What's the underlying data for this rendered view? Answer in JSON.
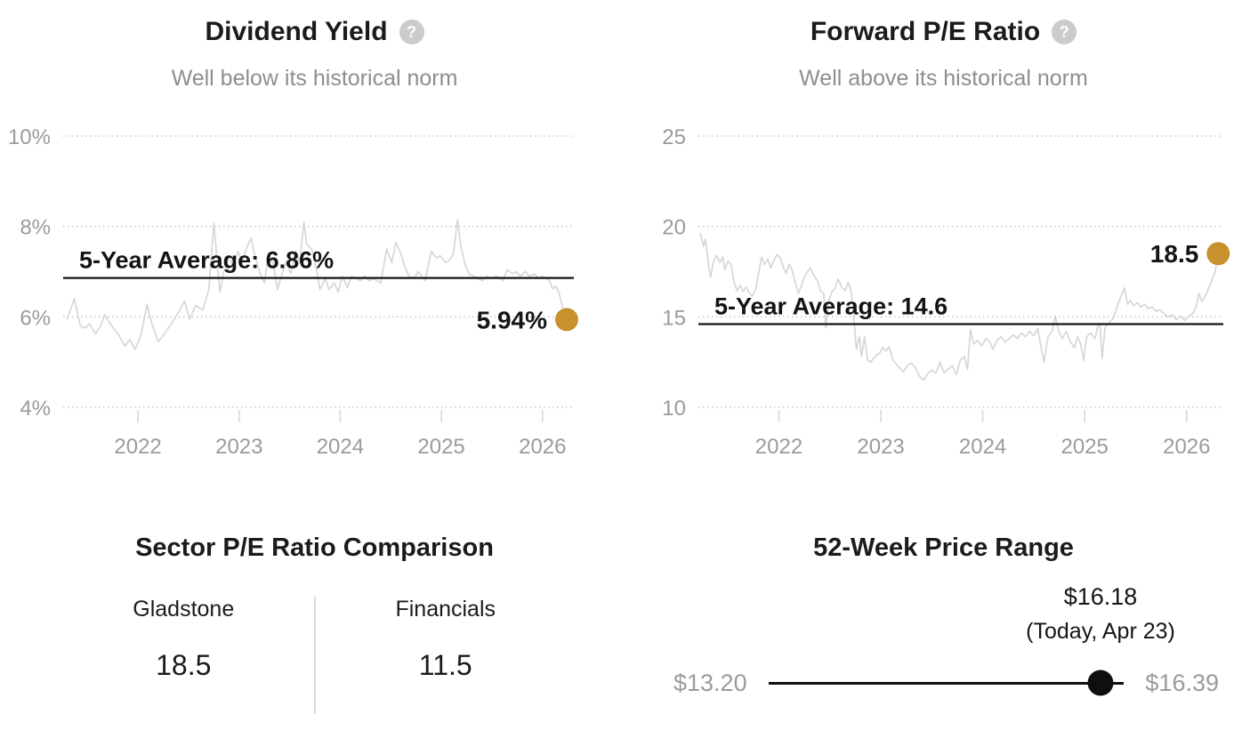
{
  "ui": {
    "help_glyph": "?"
  },
  "colors": {
    "accent_gold": "#c8912e",
    "series_gray": "#d7d7d7",
    "text_gray": "#9b9b9b",
    "subtitle_gray": "#8e8e8e",
    "black": "#141414"
  },
  "chart_data": [
    {
      "type": "line",
      "title": "Dividend Yield",
      "subtitle": "Well below its historical norm",
      "legend_position": "none",
      "grid": "dotted-horizontal",
      "y_ticks": [
        {
          "label": "10%",
          "value": 10
        },
        {
          "label": "8%",
          "value": 8
        },
        {
          "label": "6%",
          "value": 6
        },
        {
          "label": "4%",
          "value": 4
        }
      ],
      "ylim": [
        4,
        10
      ],
      "x_ticks": [
        "2022",
        "2023",
        "2024",
        "2025",
        "2026"
      ],
      "average": {
        "value": 6.86,
        "label": "5-Year Average: 6.86%"
      },
      "current": {
        "value": 5.94,
        "label": "5.94%"
      },
      "series": [
        [
          2021.3,
          5.95
        ],
        [
          2021.37,
          6.4
        ],
        [
          2021.43,
          5.8
        ],
        [
          2021.48,
          5.75
        ],
        [
          2021.52,
          5.85
        ],
        [
          2021.58,
          5.62
        ],
        [
          2021.63,
          5.8
        ],
        [
          2021.67,
          6.05
        ],
        [
          2021.74,
          5.8
        ],
        [
          2021.81,
          5.6
        ],
        [
          2021.87,
          5.35
        ],
        [
          2021.92,
          5.5
        ],
        [
          2021.97,
          5.28
        ],
        [
          2022.03,
          5.6
        ],
        [
          2022.09,
          6.28
        ],
        [
          2022.13,
          5.9
        ],
        [
          2022.2,
          5.45
        ],
        [
          2022.26,
          5.62
        ],
        [
          2022.33,
          5.85
        ],
        [
          2022.4,
          6.1
        ],
        [
          2022.46,
          6.35
        ],
        [
          2022.51,
          5.95
        ],
        [
          2022.57,
          6.25
        ],
        [
          2022.64,
          6.15
        ],
        [
          2022.7,
          6.6
        ],
        [
          2022.75,
          8.08
        ],
        [
          2022.78,
          7.3
        ],
        [
          2022.81,
          6.55
        ],
        [
          2022.85,
          7.0
        ],
        [
          2022.9,
          7.35
        ],
        [
          2022.94,
          7.1
        ],
        [
          2022.99,
          7.45
        ],
        [
          2023.03,
          7.2
        ],
        [
          2023.07,
          7.5
        ],
        [
          2023.12,
          7.75
        ],
        [
          2023.16,
          7.3
        ],
        [
          2023.21,
          6.95
        ],
        [
          2023.25,
          6.75
        ],
        [
          2023.29,
          7.4
        ],
        [
          2023.34,
          7.15
        ],
        [
          2023.38,
          6.6
        ],
        [
          2023.43,
          7.0
        ],
        [
          2023.47,
          7.25
        ],
        [
          2023.51,
          6.95
        ],
        [
          2023.56,
          7.45
        ],
        [
          2023.6,
          7.2
        ],
        [
          2023.64,
          8.1
        ],
        [
          2023.67,
          7.6
        ],
        [
          2023.72,
          7.5
        ],
        [
          2023.76,
          7.1
        ],
        [
          2023.8,
          6.6
        ],
        [
          2023.85,
          6.85
        ],
        [
          2023.89,
          6.6
        ],
        [
          2023.94,
          6.75
        ],
        [
          2023.98,
          6.55
        ],
        [
          2024.02,
          6.9
        ],
        [
          2024.07,
          6.65
        ],
        [
          2024.11,
          6.9
        ],
        [
          2024.16,
          6.85
        ],
        [
          2024.2,
          6.8
        ],
        [
          2024.24,
          6.9
        ],
        [
          2024.29,
          6.8
        ],
        [
          2024.33,
          6.85
        ],
        [
          2024.4,
          6.75
        ],
        [
          2024.46,
          7.5
        ],
        [
          2024.51,
          7.2
        ],
        [
          2024.55,
          7.65
        ],
        [
          2024.6,
          7.4
        ],
        [
          2024.64,
          7.1
        ],
        [
          2024.68,
          6.9
        ],
        [
          2024.73,
          6.85
        ],
        [
          2024.77,
          7.0
        ],
        [
          2024.84,
          6.8
        ],
        [
          2024.9,
          7.45
        ],
        [
          2024.95,
          7.3
        ],
        [
          2024.99,
          7.35
        ],
        [
          2025.04,
          7.2
        ],
        [
          2025.08,
          7.25
        ],
        [
          2025.12,
          7.4
        ],
        [
          2025.16,
          8.15
        ],
        [
          2025.19,
          7.6
        ],
        [
          2025.23,
          7.2
        ],
        [
          2025.27,
          6.95
        ],
        [
          2025.32,
          6.9
        ],
        [
          2025.36,
          6.85
        ],
        [
          2025.41,
          6.8
        ],
        [
          2025.45,
          6.9
        ],
        [
          2025.49,
          6.85
        ],
        [
          2025.54,
          6.9
        ],
        [
          2025.58,
          6.85
        ],
        [
          2025.61,
          6.8
        ],
        [
          2025.65,
          7.05
        ],
        [
          2025.7,
          6.95
        ],
        [
          2025.74,
          7.0
        ],
        [
          2025.78,
          6.9
        ],
        [
          2025.83,
          7.0
        ],
        [
          2025.87,
          6.9
        ],
        [
          2025.92,
          6.95
        ],
        [
          2025.96,
          6.85
        ],
        [
          2026.0,
          6.9
        ],
        [
          2026.04,
          6.85
        ],
        [
          2026.07,
          6.8
        ],
        [
          2026.1,
          6.62
        ],
        [
          2026.13,
          6.68
        ],
        [
          2026.16,
          6.55
        ],
        [
          2026.19,
          6.3
        ],
        [
          2026.22,
          6.05
        ],
        [
          2026.24,
          5.94
        ]
      ]
    },
    {
      "type": "line",
      "title": "Forward P/E Ratio",
      "subtitle": "Well above its historical norm",
      "legend_position": "none",
      "grid": "dotted-horizontal",
      "y_ticks": [
        {
          "label": "25",
          "value": 25
        },
        {
          "label": "20",
          "value": 20
        },
        {
          "label": "15",
          "value": 15
        },
        {
          "label": "10",
          "value": 10
        }
      ],
      "ylim": [
        10,
        25
      ],
      "x_ticks": [
        "2022",
        "2023",
        "2024",
        "2025",
        "2026"
      ],
      "average": {
        "value": 14.6,
        "label": "5-Year Average: 14.6"
      },
      "current": {
        "value": 18.5,
        "label": "18.5"
      },
      "series": [
        [
          2021.23,
          19.6
        ],
        [
          2021.26,
          18.9
        ],
        [
          2021.28,
          19.3
        ],
        [
          2021.31,
          17.8
        ],
        [
          2021.33,
          17.2
        ],
        [
          2021.36,
          18.1
        ],
        [
          2021.39,
          18.4
        ],
        [
          2021.42,
          18.0
        ],
        [
          2021.45,
          18.3
        ],
        [
          2021.47,
          17.6
        ],
        [
          2021.5,
          18.1
        ],
        [
          2021.53,
          17.9
        ],
        [
          2021.56,
          16.9
        ],
        [
          2021.59,
          16.45
        ],
        [
          2021.62,
          16.75
        ],
        [
          2021.65,
          16.4
        ],
        [
          2021.68,
          16.65
        ],
        [
          2021.71,
          16.3
        ],
        [
          2021.74,
          16.15
        ],
        [
          2021.77,
          16.5
        ],
        [
          2021.8,
          17.4
        ],
        [
          2021.83,
          18.3
        ],
        [
          2021.86,
          17.9
        ],
        [
          2021.89,
          18.2
        ],
        [
          2021.92,
          17.7
        ],
        [
          2021.95,
          18.1
        ],
        [
          2021.98,
          18.45
        ],
        [
          2022.01,
          18.3
        ],
        [
          2022.04,
          17.8
        ],
        [
          2022.07,
          17.4
        ],
        [
          2022.1,
          17.9
        ],
        [
          2022.13,
          17.6
        ],
        [
          2022.16,
          16.9
        ],
        [
          2022.19,
          16.3
        ],
        [
          2022.22,
          16.7
        ],
        [
          2022.25,
          17.2
        ],
        [
          2022.28,
          17.5
        ],
        [
          2022.31,
          17.7
        ],
        [
          2022.34,
          17.3
        ],
        [
          2022.38,
          17.0
        ],
        [
          2022.41,
          16.4
        ],
        [
          2022.44,
          16.3
        ],
        [
          2022.46,
          14.4
        ],
        [
          2022.49,
          15.9
        ],
        [
          2022.52,
          16.4
        ],
        [
          2022.55,
          16.55
        ],
        [
          2022.58,
          17.1
        ],
        [
          2022.62,
          16.6
        ],
        [
          2022.65,
          16.45
        ],
        [
          2022.68,
          16.9
        ],
        [
          2022.71,
          16.4
        ],
        [
          2022.73,
          15.3
        ],
        [
          2022.76,
          13.2
        ],
        [
          2022.79,
          13.9
        ],
        [
          2022.81,
          12.8
        ],
        [
          2022.84,
          13.9
        ],
        [
          2022.87,
          12.6
        ],
        [
          2022.9,
          12.5
        ],
        [
          2022.93,
          12.7
        ],
        [
          2022.96,
          12.9
        ],
        [
          2022.99,
          13.0
        ],
        [
          2023.02,
          13.3
        ],
        [
          2023.05,
          13.1
        ],
        [
          2023.08,
          13.35
        ],
        [
          2023.12,
          12.6
        ],
        [
          2023.15,
          12.4
        ],
        [
          2023.18,
          12.2
        ],
        [
          2023.22,
          11.95
        ],
        [
          2023.26,
          12.3
        ],
        [
          2023.3,
          12.45
        ],
        [
          2023.34,
          12.2
        ],
        [
          2023.38,
          11.7
        ],
        [
          2023.42,
          11.5
        ],
        [
          2023.46,
          11.85
        ],
        [
          2023.5,
          12.05
        ],
        [
          2023.54,
          11.9
        ],
        [
          2023.58,
          12.5
        ],
        [
          2023.62,
          11.9
        ],
        [
          2023.66,
          12.1
        ],
        [
          2023.7,
          12.3
        ],
        [
          2023.74,
          11.8
        ],
        [
          2023.78,
          12.6
        ],
        [
          2023.82,
          12.8
        ],
        [
          2023.85,
          12.1
        ],
        [
          2023.88,
          14.3
        ],
        [
          2023.91,
          13.5
        ],
        [
          2023.95,
          13.7
        ],
        [
          2023.99,
          13.4
        ],
        [
          2024.03,
          13.8
        ],
        [
          2024.07,
          13.6
        ],
        [
          2024.1,
          13.2
        ],
        [
          2024.14,
          13.7
        ],
        [
          2024.18,
          13.9
        ],
        [
          2024.22,
          13.6
        ],
        [
          2024.26,
          13.8
        ],
        [
          2024.3,
          14.0
        ],
        [
          2024.34,
          13.8
        ],
        [
          2024.38,
          14.1
        ],
        [
          2024.42,
          13.9
        ],
        [
          2024.46,
          14.2
        ],
        [
          2024.5,
          13.95
        ],
        [
          2024.54,
          14.35
        ],
        [
          2024.57,
          13.4
        ],
        [
          2024.6,
          12.5
        ],
        [
          2024.64,
          13.9
        ],
        [
          2024.68,
          14.2
        ],
        [
          2024.71,
          15.05
        ],
        [
          2024.74,
          14.3
        ],
        [
          2024.78,
          13.8
        ],
        [
          2024.82,
          14.2
        ],
        [
          2024.86,
          13.6
        ],
        [
          2024.9,
          13.3
        ],
        [
          2024.93,
          13.9
        ],
        [
          2024.96,
          13.5
        ],
        [
          2024.99,
          12.6
        ],
        [
          2025.02,
          13.9
        ],
        [
          2025.06,
          14.1
        ],
        [
          2025.1,
          13.8
        ],
        [
          2025.13,
          14.5
        ],
        [
          2025.15,
          14.6
        ],
        [
          2025.17,
          12.7
        ],
        [
          2025.2,
          14.4
        ],
        [
          2025.24,
          14.7
        ],
        [
          2025.28,
          14.9
        ],
        [
          2025.32,
          15.6
        ],
        [
          2025.36,
          16.2
        ],
        [
          2025.39,
          16.6
        ],
        [
          2025.42,
          15.7
        ],
        [
          2025.45,
          15.9
        ],
        [
          2025.48,
          15.6
        ],
        [
          2025.52,
          15.8
        ],
        [
          2025.55,
          15.55
        ],
        [
          2025.59,
          15.7
        ],
        [
          2025.62,
          15.45
        ],
        [
          2025.66,
          15.55
        ],
        [
          2025.7,
          15.3
        ],
        [
          2025.74,
          15.4
        ],
        [
          2025.78,
          15.15
        ],
        [
          2025.82,
          15.0
        ],
        [
          2025.86,
          15.1
        ],
        [
          2025.9,
          14.85
        ],
        [
          2025.94,
          15.05
        ],
        [
          2025.98,
          14.8
        ],
        [
          2026.02,
          15.0
        ],
        [
          2026.06,
          15.2
        ],
        [
          2026.09,
          15.5
        ],
        [
          2026.12,
          16.3
        ],
        [
          2026.15,
          15.85
        ],
        [
          2026.18,
          16.1
        ],
        [
          2026.21,
          16.5
        ],
        [
          2026.24,
          16.9
        ],
        [
          2026.28,
          17.5
        ],
        [
          2026.31,
          18.5
        ]
      ]
    },
    {
      "type": "table",
      "title": "Sector P/E Ratio Comparison",
      "items": [
        {
          "label": "Gladstone",
          "value": "18.5"
        },
        {
          "label": "Financials",
          "value": "11.5"
        }
      ]
    },
    {
      "type": "range",
      "title": "52-Week Price Range",
      "low_label": "$13.20",
      "high_label": "$16.39",
      "low": 13.2,
      "high": 16.39,
      "current": 16.18,
      "current_label": "$16.18",
      "current_note": "(Today, Apr 23)"
    }
  ]
}
